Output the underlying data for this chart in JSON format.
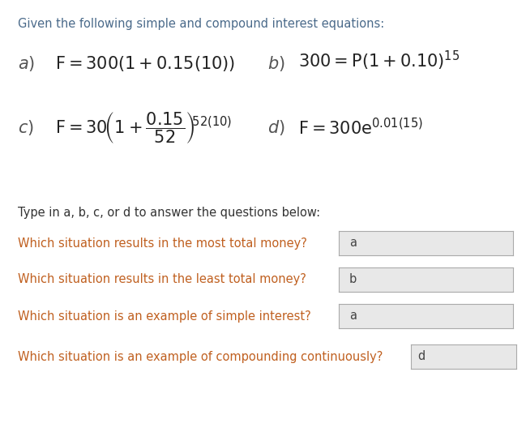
{
  "background_color": "#ffffff",
  "header_text": "Given the following simple and compound interest equations:",
  "header_color": "#4a6a8a",
  "header_fontsize": 10.5,
  "equation_fontsize": 15,
  "eq_label_color": "#555555",
  "eq_text_color": "#222222",
  "type_in_text": "Type in a, b, c, or d to answer the questions below:",
  "type_in_color": "#333333",
  "type_in_fontsize": 10.5,
  "questions": [
    "Which situation results in the most total money?",
    "Which situation results in the least total money?",
    "Which situation is an example of simple interest?",
    "Which situation is an example of compounding continuously?"
  ],
  "answers": [
    "a",
    "b",
    "a",
    "d"
  ],
  "question_color": "#c06020",
  "answer_color": "#444444",
  "box_facecolor": "#e8e8e8",
  "box_edgecolor": "#aaaaaa",
  "question_fontsize": 10.5,
  "answer_fontsize": 10.5,
  "fig_width": 6.49,
  "fig_height": 5.33,
  "dpi": 100
}
